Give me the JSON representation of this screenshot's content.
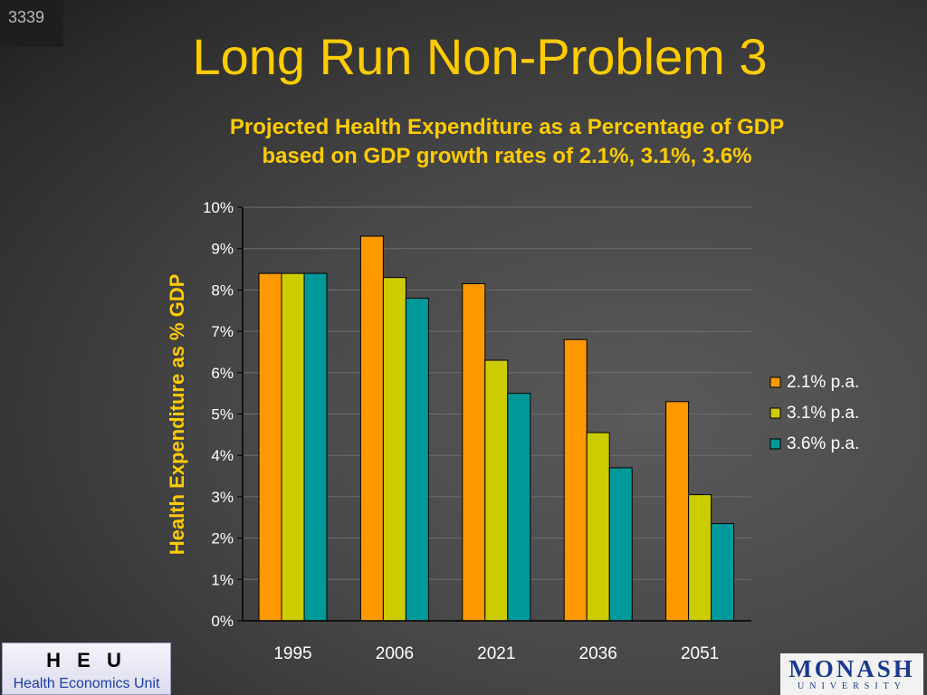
{
  "slide": {
    "number": "3339",
    "title": "Long Run Non-Problem 3"
  },
  "footer": {
    "heu_logo": "H E U",
    "heu_name": "Health Economics Unit",
    "monash_name": "MONASH",
    "monash_sub": "UNIVERSITY"
  },
  "chart_data": {
    "type": "bar",
    "title": [
      "Projected Health Expenditure as a Percentage of GDP",
      "based on GDP growth rates of 2.1%, 3.1%,  3.6%"
    ],
    "xlabel": "",
    "ylabel": "Health Expenditure as % GDP",
    "ylim": [
      0,
      10
    ],
    "yticks": [
      "0%",
      "1%",
      "2%",
      "3%",
      "4%",
      "5%",
      "6%",
      "7%",
      "8%",
      "9%",
      "10%"
    ],
    "categories": [
      "1995",
      "2006",
      "2021",
      "2036",
      "2051"
    ],
    "series": [
      {
        "name": "2.1% p.a.",
        "color": "#ff9900",
        "values": [
          8.4,
          9.3,
          8.15,
          6.8,
          5.3
        ]
      },
      {
        "name": "3.1% p.a.",
        "color": "#cccc00",
        "values": [
          8.4,
          8.3,
          6.3,
          4.55,
          3.05
        ]
      },
      {
        "name": "3.6% p.a.",
        "color": "#009999",
        "values": [
          8.4,
          7.8,
          5.5,
          3.7,
          2.35
        ]
      }
    ],
    "grid": true,
    "legend": "right"
  }
}
